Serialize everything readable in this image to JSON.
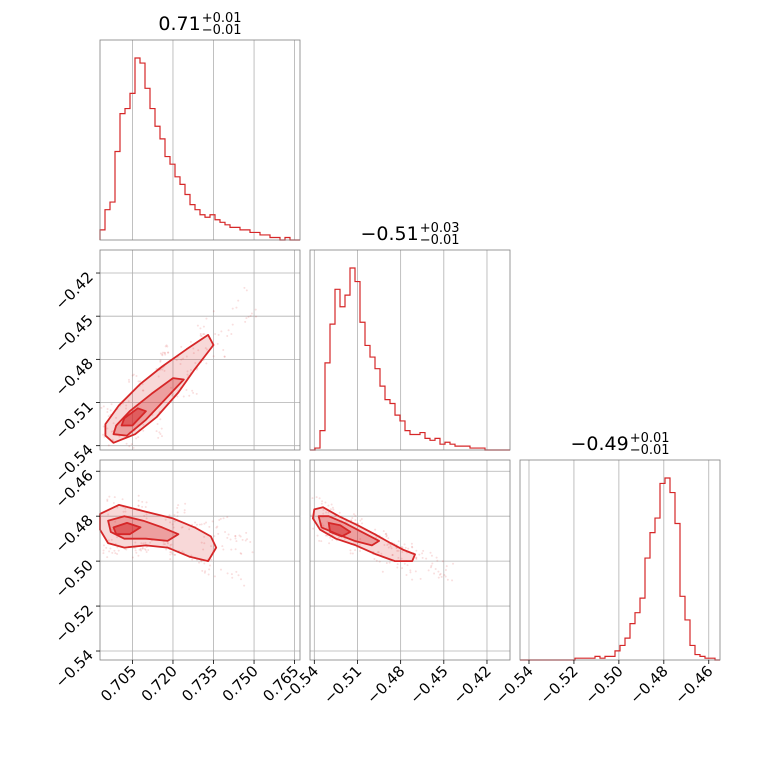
{
  "chart_data": {
    "type": "corner",
    "color": "#d62728",
    "grid": true,
    "parameters": [
      {
        "median": "0.71",
        "plus": "+0.01",
        "minus": "−0.01",
        "range": [
          0.693,
          0.767
        ]
      },
      {
        "median": "−0.51",
        "plus": "+0.03",
        "minus": "−0.01",
        "range": [
          -0.543,
          -0.404
        ]
      },
      {
        "median": "−0.49",
        "plus": "+0.01",
        "minus": "−0.01",
        "range": [
          -0.544,
          -0.455
        ]
      }
    ],
    "ticks": {
      "p0": [
        "0.705",
        "0.720",
        "0.735",
        "0.750",
        "0.765"
      ],
      "p1": [
        "−0.54",
        "−0.51",
        "−0.48",
        "−0.45",
        "−0.42"
      ],
      "p2": [
        "−0.54",
        "−0.52",
        "−0.50",
        "−0.48",
        "−0.46"
      ]
    },
    "hist_1d": [
      {
        "bin_edges": [
          0.693,
          0.767
        ],
        "counts": [
          4,
          12,
          15,
          35,
          50,
          52,
          58,
          72,
          70,
          60,
          52,
          45,
          40,
          33,
          30,
          25,
          22,
          18,
          14,
          12,
          10,
          9,
          10,
          8,
          7,
          6,
          5,
          5,
          4,
          4,
          3,
          3,
          2,
          2,
          1,
          1,
          0,
          1,
          0,
          0
        ]
      },
      {
        "bin_edges": [
          -0.543,
          -0.404
        ],
        "counts": [
          0,
          1,
          10,
          45,
          65,
          83,
          74,
          80,
          94,
          87,
          66,
          54,
          48,
          42,
          33,
          26,
          24,
          18,
          15,
          10,
          8,
          8,
          9,
          6,
          5,
          6,
          3,
          4,
          3,
          2,
          2,
          2,
          1,
          1,
          1,
          0,
          0,
          0,
          0,
          0
        ]
      },
      {
        "bin_edges": [
          -0.544,
          -0.455
        ],
        "counts": [
          0,
          0,
          0,
          0,
          0,
          0,
          0,
          0,
          0,
          0,
          0,
          1,
          1,
          1,
          1,
          2,
          1,
          2,
          2,
          5,
          8,
          12,
          20,
          26,
          34,
          56,
          70,
          78,
          97,
          100,
          92,
          75,
          35,
          22,
          8,
          3,
          2,
          1,
          1,
          0
        ]
      }
    ],
    "hist_2d": [
      {
        "x": "p0",
        "y": "p1",
        "contours": [
          [
            [
              0.695,
              -0.533
            ],
            [
              0.698,
              -0.538
            ],
            [
              0.706,
              -0.532
            ],
            [
              0.714,
              -0.52
            ],
            [
              0.722,
              -0.503
            ],
            [
              0.728,
              -0.487
            ],
            [
              0.735,
              -0.47
            ],
            [
              0.733,
              -0.463
            ],
            [
              0.725,
              -0.473
            ],
            [
              0.716,
              -0.485
            ],
            [
              0.708,
              -0.497
            ],
            [
              0.7,
              -0.512
            ],
            [
              0.695,
              -0.525
            ]
          ],
          [
            [
              0.698,
              -0.532
            ],
            [
              0.703,
              -0.533
            ],
            [
              0.71,
              -0.522
            ],
            [
              0.717,
              -0.508
            ],
            [
              0.724,
              -0.494
            ],
            [
              0.72,
              -0.493
            ],
            [
              0.712,
              -0.504
            ],
            [
              0.704,
              -0.516
            ],
            [
              0.699,
              -0.526
            ]
          ],
          [
            [
              0.701,
              -0.526
            ],
            [
              0.705,
              -0.526
            ],
            [
              0.71,
              -0.516
            ],
            [
              0.707,
              -0.514
            ],
            [
              0.702,
              -0.521
            ]
          ]
        ]
      },
      {
        "x": "p0",
        "y": "p2",
        "contours": [
          [
            [
              0.693,
              -0.479
            ],
            [
              0.7,
              -0.475
            ],
            [
              0.71,
              -0.478
            ],
            [
              0.72,
              -0.481
            ],
            [
              0.728,
              -0.485
            ],
            [
              0.734,
              -0.489
            ],
            [
              0.736,
              -0.494
            ],
            [
              0.733,
              -0.5
            ],
            [
              0.726,
              -0.498
            ],
            [
              0.718,
              -0.494
            ],
            [
              0.71,
              -0.493
            ],
            [
              0.702,
              -0.494
            ],
            [
              0.696,
              -0.492
            ],
            [
              0.693,
              -0.486
            ]
          ],
          [
            [
              0.696,
              -0.482
            ],
            [
              0.702,
              -0.48
            ],
            [
              0.709,
              -0.482
            ],
            [
              0.716,
              -0.485
            ],
            [
              0.722,
              -0.488
            ],
            [
              0.718,
              -0.491
            ],
            [
              0.71,
              -0.49
            ],
            [
              0.702,
              -0.49
            ],
            [
              0.697,
              -0.487
            ]
          ],
          [
            [
              0.698,
              -0.485
            ],
            [
              0.703,
              -0.483
            ],
            [
              0.708,
              -0.485
            ],
            [
              0.704,
              -0.488
            ],
            [
              0.699,
              -0.488
            ]
          ]
        ]
      },
      {
        "x": "p1",
        "y": "p2",
        "contours": [
          [
            [
              -0.54,
              -0.477
            ],
            [
              -0.534,
              -0.476
            ],
            [
              -0.523,
              -0.48
            ],
            [
              -0.51,
              -0.484
            ],
            [
              -0.498,
              -0.488
            ],
            [
              -0.487,
              -0.492
            ],
            [
              -0.478,
              -0.495
            ],
            [
              -0.47,
              -0.497
            ],
            [
              -0.472,
              -0.5
            ],
            [
              -0.484,
              -0.5
            ],
            [
              -0.497,
              -0.497
            ],
            [
              -0.511,
              -0.493
            ],
            [
              -0.525,
              -0.49
            ],
            [
              -0.536,
              -0.486
            ],
            [
              -0.541,
              -0.481
            ]
          ],
          [
            [
              -0.537,
              -0.48
            ],
            [
              -0.53,
              -0.48
            ],
            [
              -0.519,
              -0.483
            ],
            [
              -0.507,
              -0.487
            ],
            [
              -0.495,
              -0.491
            ],
            [
              -0.5,
              -0.493
            ],
            [
              -0.512,
              -0.491
            ],
            [
              -0.524,
              -0.488
            ],
            [
              -0.535,
              -0.485
            ]
          ],
          [
            [
              -0.53,
              -0.483
            ],
            [
              -0.522,
              -0.484
            ],
            [
              -0.515,
              -0.487
            ],
            [
              -0.521,
              -0.489
            ],
            [
              -0.529,
              -0.487
            ]
          ]
        ]
      }
    ]
  }
}
